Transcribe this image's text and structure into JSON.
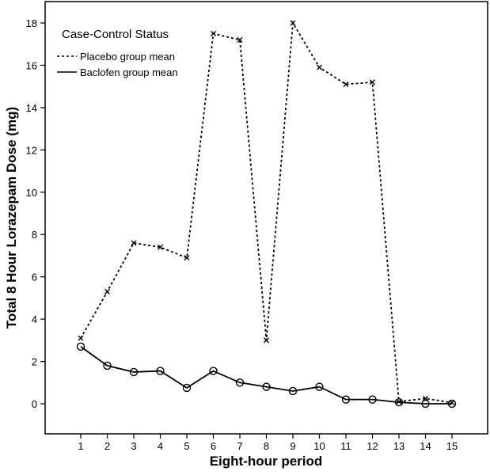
{
  "chart_data": {
    "type": "line",
    "xlabel": "Eight-hour period",
    "ylabel": "Total 8 Hour Lorazepam Dose (mg)",
    "x": [
      1,
      2,
      3,
      4,
      5,
      6,
      7,
      8,
      9,
      10,
      11,
      12,
      13,
      14,
      15
    ],
    "xlim": [
      0,
      16
    ],
    "ylim": [
      0,
      18.7
    ],
    "yticks": [
      0,
      2,
      4,
      6,
      8,
      10,
      12,
      14,
      16,
      18
    ],
    "grid": false,
    "legend": {
      "title": "Case-Control Status",
      "placement": "top-left"
    },
    "series": [
      {
        "name": "Placebo group mean",
        "line": "dashed",
        "marker": "x",
        "color": "#000000",
        "values": [
          3.1,
          5.3,
          7.6,
          7.4,
          6.9,
          17.5,
          17.2,
          3.0,
          18.0,
          15.9,
          15.1,
          15.2,
          0.1,
          0.25,
          0.05
        ]
      },
      {
        "name": "Baclofen group mean",
        "line": "solid",
        "marker": "circle",
        "color": "#000000",
        "values": [
          2.7,
          1.8,
          1.5,
          1.55,
          0.75,
          1.55,
          1.0,
          0.8,
          0.6,
          0.8,
          0.2,
          0.2,
          0.07,
          0.0,
          0.0
        ]
      }
    ]
  }
}
